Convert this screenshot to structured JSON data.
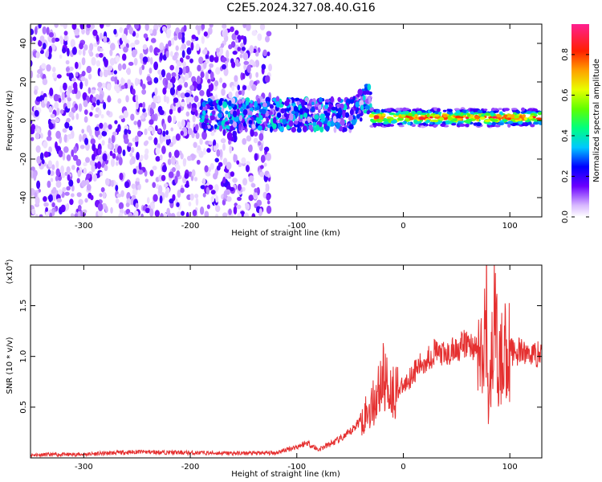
{
  "title": "C2E5.2024.327.08.40.G16",
  "chart_data": [
    {
      "type": "heatmap",
      "xlabel": "Height of straight line (km)",
      "ylabel": "Frequency (Hz)",
      "xlim": [
        -350,
        130
      ],
      "ylim": [
        -50,
        50
      ],
      "xticks": [
        -300,
        -200,
        -100,
        0,
        100
      ],
      "yticks": [
        -40,
        -20,
        0,
        20,
        40
      ],
      "xtick_labels": [
        "-300",
        "-200",
        "-100",
        "0",
        "100"
      ],
      "ytick_labels": [
        "-40",
        "-20",
        "0",
        "20",
        "40"
      ],
      "colorbar": {
        "label": "Normalized spectral amplitude",
        "range": [
          0.0,
          0.95
        ],
        "ticks": [
          0.0,
          0.2,
          0.4,
          0.6,
          0.8
        ],
        "tick_labels": [
          "0.0",
          "0.2",
          "0.4",
          "0.6",
          "0.8"
        ]
      },
      "features": [
        {
          "x_range": [
            -350,
            -125
          ],
          "freq_range": [
            -50,
            50
          ],
          "amplitude": 0.1
        },
        {
          "x_range": [
            -190,
            -30
          ],
          "freq_center": 3,
          "amplitude": 0.35
        },
        {
          "x_range": [
            -30,
            130
          ],
          "freq_center": 1.5,
          "amplitude": 0.85
        }
      ]
    },
    {
      "type": "line",
      "xlabel": "Height of straight line (km)",
      "ylabel": "SNR (10 * v/v)",
      "ylabel_exponent": "(x10",
      "ylabel_exponent_power": "4",
      "ylabel_exponent_close": ")",
      "xlim": [
        -350,
        130
      ],
      "ylim": [
        0,
        19000
      ],
      "xticks": [
        -300,
        -200,
        -100,
        0,
        100
      ],
      "yticks": [
        5000,
        10000,
        15000
      ],
      "xtick_labels": [
        "-300",
        "-200",
        "-100",
        "0",
        "100"
      ],
      "ytick_labels": [
        "0.5",
        "1.0",
        "1.5"
      ],
      "series": [
        {
          "color": "#e53030",
          "x": [
            -350,
            -300,
            -250,
            -200,
            -150,
            -120,
            -100,
            -90,
            -80,
            -70,
            -60,
            -50,
            -40,
            -30,
            -25,
            -20,
            -10,
            0,
            10,
            20,
            30,
            40,
            50,
            60,
            65,
            70,
            75,
            78,
            80,
            85,
            90,
            95,
            100,
            110,
            120,
            130
          ],
          "values": [
            300,
            350,
            600,
            500,
            450,
            500,
            1100,
            1500,
            800,
            1300,
            1800,
            2500,
            3800,
            5000,
            6000,
            8000,
            6500,
            7000,
            8500,
            9500,
            10500,
            10000,
            10800,
            11300,
            11000,
            10600,
            9000,
            16000,
            4000,
            14000,
            8500,
            11000,
            10500,
            10400,
            10300,
            10200
          ]
        }
      ]
    }
  ]
}
